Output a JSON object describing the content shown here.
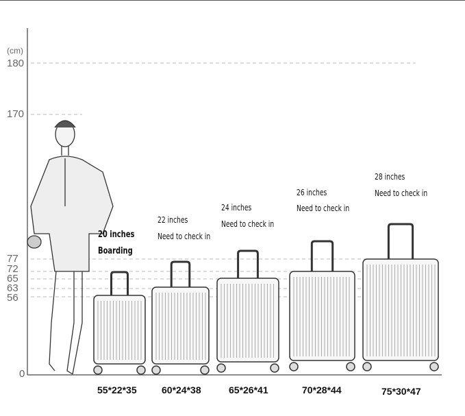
{
  "axis": {
    "unit": "(cm)",
    "ticks": [
      "180",
      "170",
      "77",
      "72",
      "65",
      "63",
      "56",
      "0"
    ]
  },
  "suitcases": [
    {
      "size": "20 inches",
      "note": "Boarding",
      "dimensions": "55*22*35"
    },
    {
      "size": "22 inches",
      "note": "Need to check in",
      "dimensions": "60*24*38"
    },
    {
      "size": "24 inches",
      "note": "Need to check in",
      "dimensions": "65*26*41"
    },
    {
      "size": "26 inches",
      "note": "Need to check in",
      "dimensions": "70*28*44"
    },
    {
      "size": "28 inches",
      "note": "Need to check in",
      "dimensions": "75*30*47"
    }
  ]
}
